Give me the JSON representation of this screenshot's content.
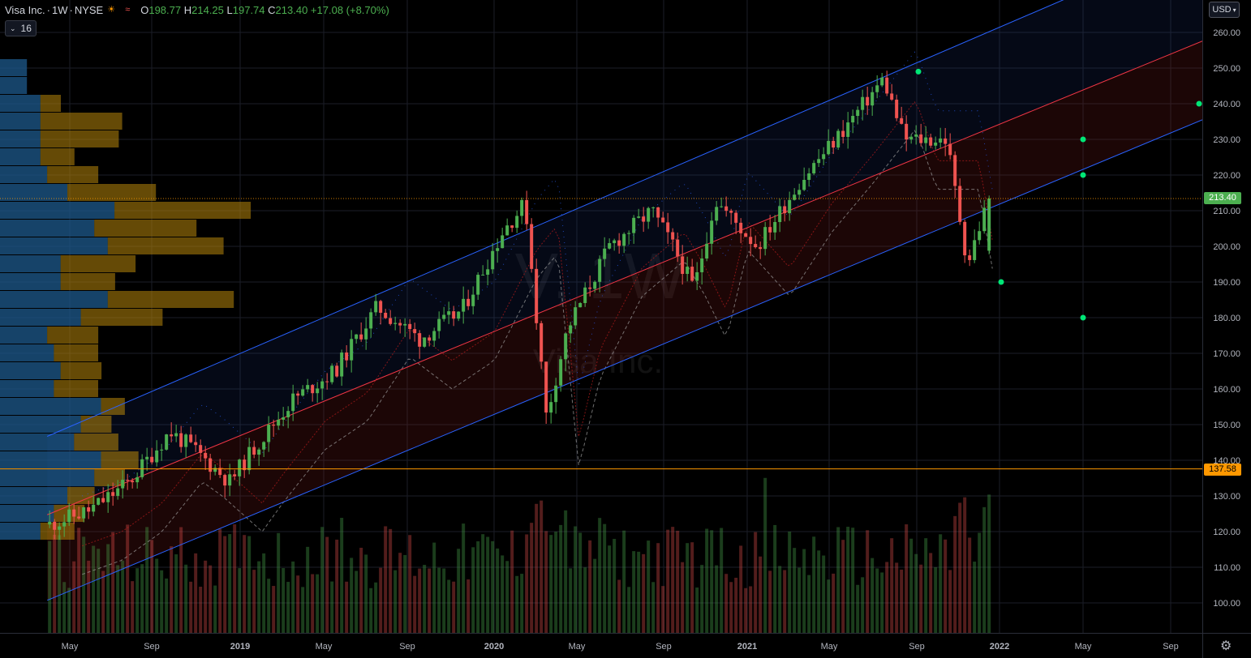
{
  "header": {
    "symbol_name": "Visa Inc.",
    "interval": "1W",
    "exchange": "NYSE",
    "open_label": "O",
    "open": "198.77",
    "high_label": "H",
    "high": "214.25",
    "low_label": "L",
    "low": "197.74",
    "close_label": "C",
    "close": "213.40",
    "change": "+17.08 (+8.70%)",
    "indicator_count": "16",
    "currency": "USD"
  },
  "watermark": {
    "ticker": "V, 1W",
    "name": "Visa Inc."
  },
  "badges": {
    "last_price": "213.40",
    "support_price": "137.58"
  },
  "colors": {
    "up": "#4caf50",
    "down": "#ef5350",
    "channel_outer": "#2962ff",
    "channel_mid": "#f23645",
    "support_line": "#ff9800",
    "pivot_dots": "#00e676",
    "volume_profile_blue": "#1e5a8c",
    "volume_profile_gold": "#b8860b"
  },
  "chart_data": {
    "type": "candlestick",
    "y_axis": {
      "ticks": [
        "260.00",
        "250.00",
        "240.00",
        "230.00",
        "220.00",
        "210.00",
        "200.00",
        "190.00",
        "180.00",
        "170.00",
        "160.00",
        "150.00",
        "140.00",
        "130.00",
        "120.00",
        "110.00",
        "100.00"
      ],
      "range": [
        93,
        264
      ]
    },
    "x_axis_ticks": [
      "May",
      "Sep",
      "2019",
      "May",
      "Sep",
      "2020",
      "May",
      "Sep",
      "2021",
      "May",
      "Sep",
      "2022",
      "May",
      "Sep"
    ],
    "price_path": [
      {
        "date": "2018-03",
        "price": 122
      },
      {
        "date": "2018-05",
        "price": 126
      },
      {
        "date": "2018-07",
        "price": 134
      },
      {
        "date": "2018-09",
        "price": 148
      },
      {
        "date": "2018-10",
        "price": 144
      },
      {
        "date": "2018-12",
        "price": 134
      },
      {
        "date": "2019-01",
        "price": 142
      },
      {
        "date": "2019-03",
        "price": 157
      },
      {
        "date": "2019-05",
        "price": 165
      },
      {
        "date": "2019-07",
        "price": 183
      },
      {
        "date": "2019-09",
        "price": 174
      },
      {
        "date": "2019-11",
        "price": 182
      },
      {
        "date": "2020-01",
        "price": 205
      },
      {
        "date": "2020-02",
        "price": 212
      },
      {
        "date": "2020-03",
        "price": 152
      },
      {
        "date": "2020-04",
        "price": 177
      },
      {
        "date": "2020-06",
        "price": 200
      },
      {
        "date": "2020-08",
        "price": 210
      },
      {
        "date": "2020-09",
        "price": 200
      },
      {
        "date": "2020-10",
        "price": 188
      },
      {
        "date": "2020-11",
        "price": 213
      },
      {
        "date": "2021-01",
        "price": 200
      },
      {
        "date": "2021-03",
        "price": 218
      },
      {
        "date": "2021-05",
        "price": 232
      },
      {
        "date": "2021-07",
        "price": 247
      },
      {
        "date": "2021-08",
        "price": 230
      },
      {
        "date": "2021-10",
        "price": 230
      },
      {
        "date": "2021-11",
        "price": 195
      },
      {
        "date": "2021-12",
        "price": 213.4
      }
    ],
    "last_bar": {
      "open": 198.77,
      "high": 214.25,
      "low": 197.74,
      "close": 213.4
    },
    "channel": {
      "upper": [
        {
          "date": "2018-03",
          "price": 147
        },
        {
          "date": "2021-08",
          "price": 250
        }
      ],
      "middle": [
        {
          "date": "2018-03",
          "price": 125
        },
        {
          "date": "2022-12",
          "price": 262
        }
      ],
      "lower": [
        {
          "date": "2018-03",
          "price": 101
        },
        {
          "date": "2022-12",
          "price": 240
        }
      ]
    },
    "support_level": 137.58,
    "pivot_points": [
      {
        "date": "2021-08",
        "price": 249
      },
      {
        "date": "2022-05",
        "price": 230
      },
      {
        "date": "2022-05",
        "price": 220
      },
      {
        "date": "2021-12",
        "price": 190
      },
      {
        "date": "2022-05",
        "price": 180
      },
      {
        "date": "2022-12",
        "price": 240
      }
    ]
  }
}
